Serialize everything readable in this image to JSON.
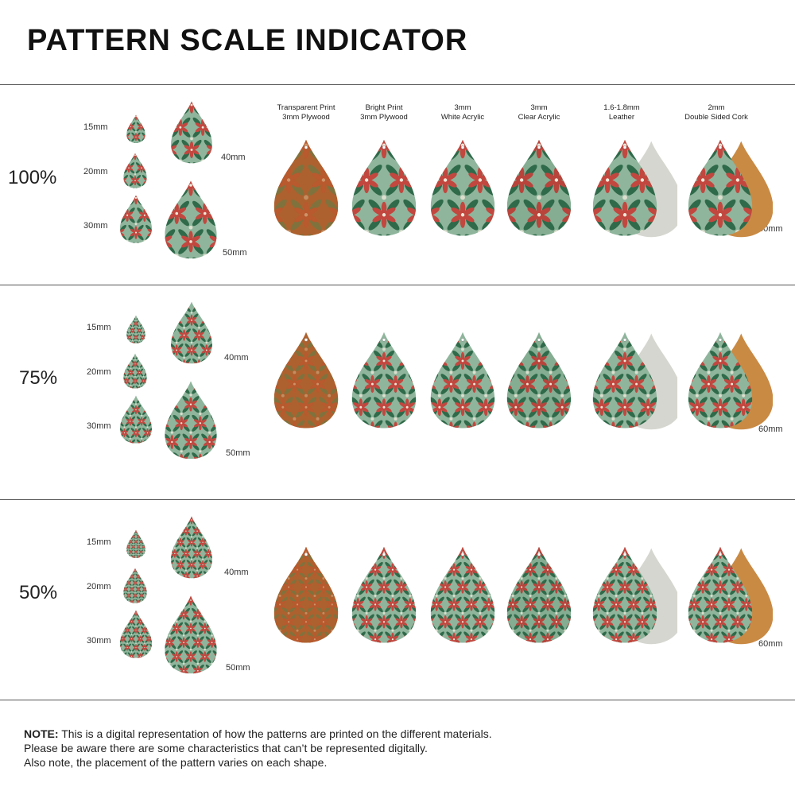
{
  "title": "PATTERN SCALE INDICATOR",
  "materials": [
    {
      "line1": "Transparent Print",
      "line2": "3mm Plywood",
      "icon": "plywood-transparent"
    },
    {
      "line1": "Bright Print",
      "line2": "3mm Plywood",
      "icon": "plywood-bright"
    },
    {
      "line1": "3mm",
      "line2": "White Acrylic",
      "icon": "acrylic-white"
    },
    {
      "line1": "3mm",
      "line2": "Clear Acrylic",
      "icon": "acrylic-clear"
    },
    {
      "line1": "1.6-1.8mm",
      "line2": "Leather",
      "icon": "leather"
    },
    {
      "line1": "2mm",
      "line2": "Double Sided Cork",
      "icon": "cork"
    }
  ],
  "sections": [
    {
      "scale": "100%",
      "sizes": [
        "15mm",
        "20mm",
        "30mm",
        "40mm",
        "50mm"
      ],
      "large_size": "60mm"
    },
    {
      "scale": "75%",
      "sizes": [
        "15mm",
        "20mm",
        "30mm",
        "40mm",
        "50mm"
      ],
      "large_size": "60mm"
    },
    {
      "scale": "50%",
      "sizes": [
        "15mm",
        "20mm",
        "30mm",
        "40mm",
        "50mm"
      ],
      "large_size": "60mm"
    }
  ],
  "note": {
    "label": "NOTE:",
    "line1": " This is a digital representation of how the patterns are printed on the different materials.",
    "line2": "Please be aware there are some characteristics that can’t be represented digitally.",
    "line3": "Also note, the placement of the pattern varies on each shape."
  },
  "colors": {
    "green_bg": "#8fb59c",
    "dark_green": "#2f6a4a",
    "poinsettia_red": "#c2473f",
    "cream": "#efe9da",
    "plywood": "#b0622e",
    "cork": "#c98a44",
    "leather_back": "#d6d6d0"
  }
}
